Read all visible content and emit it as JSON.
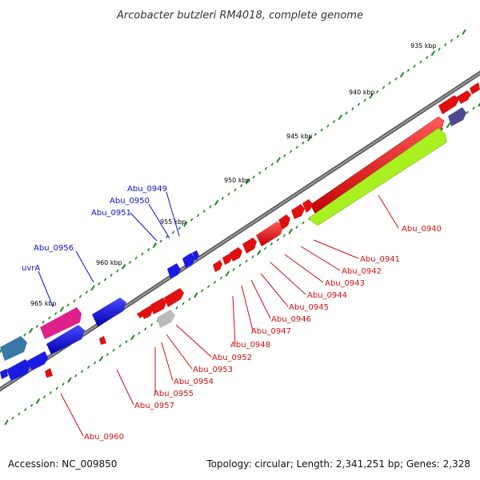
{
  "title": "Arcobacter butzleri RM4018, complete genome",
  "footer": {
    "accession": "Accession: NC_009850",
    "summary": "Topology: circular; Length: 2,341,251 bp; Genes: 2,328"
  },
  "ticks": [
    "935 kbp",
    "940 kbp",
    "945 kbp",
    "950 kbp",
    "955 kbp",
    "960 kbp",
    "965 kbp"
  ],
  "labels_forward": [
    "Abu_0949",
    "Abu_0950",
    "Abu_0951",
    "Abu_0956",
    "uvrA"
  ],
  "labels_reverse": [
    "Abu_0940",
    "Abu_0941",
    "Abu_0942",
    "Abu_0943",
    "Abu_0944",
    "Abu_0945",
    "Abu_0946",
    "Abu_0947",
    "Abu_0948",
    "Abu_0952",
    "Abu_0953",
    "Abu_0954",
    "Abu_0955",
    "Abu_0957",
    "Abu_0960"
  ],
  "colors": {
    "forward": "#1a1ae0",
    "reverse": "#e01010",
    "pink": "#e0208a",
    "lime": "#a8f020",
    "steel": "#3a78a8",
    "slate": "#4a4a90",
    "gray": "#bbbbbb",
    "backbone": "#7a7a7a",
    "tickgreen": "#1a8a1a"
  }
}
